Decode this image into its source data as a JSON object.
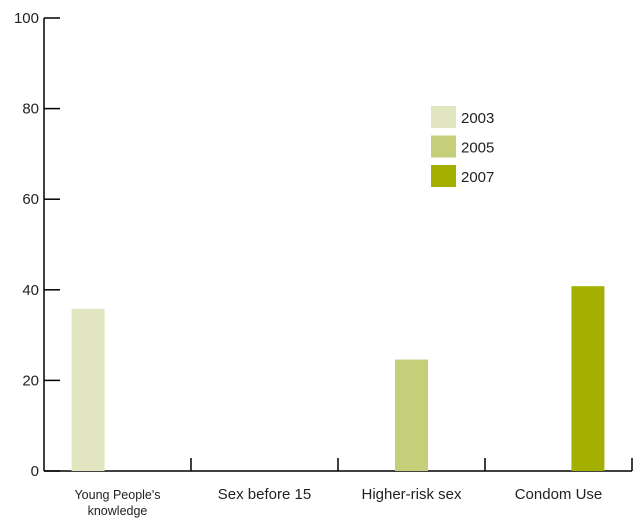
{
  "chart_data": {
    "type": "bar",
    "title": "",
    "xlabel": "",
    "ylabel": "",
    "ylim": [
      0,
      100
    ],
    "yticks": [
      0,
      20,
      40,
      60,
      80,
      100
    ],
    "categories": [
      [
        "Young People's",
        "knowledge"
      ],
      [
        "Sex before 15"
      ],
      [
        "Higher-risk sex"
      ],
      [
        "Condom Use"
      ]
    ],
    "series": [
      {
        "name": "2003",
        "color": "#e1e6c0",
        "values": [
          35.8,
          null,
          null,
          null
        ]
      },
      {
        "name": "2005",
        "color": "#c5cf7a",
        "values": [
          null,
          null,
          24.6,
          null
        ]
      },
      {
        "name": "2007",
        "color": "#a3b000",
        "values": [
          null,
          null,
          null,
          40.8
        ]
      }
    ],
    "legend_position": "upper-right",
    "grid": false
  }
}
